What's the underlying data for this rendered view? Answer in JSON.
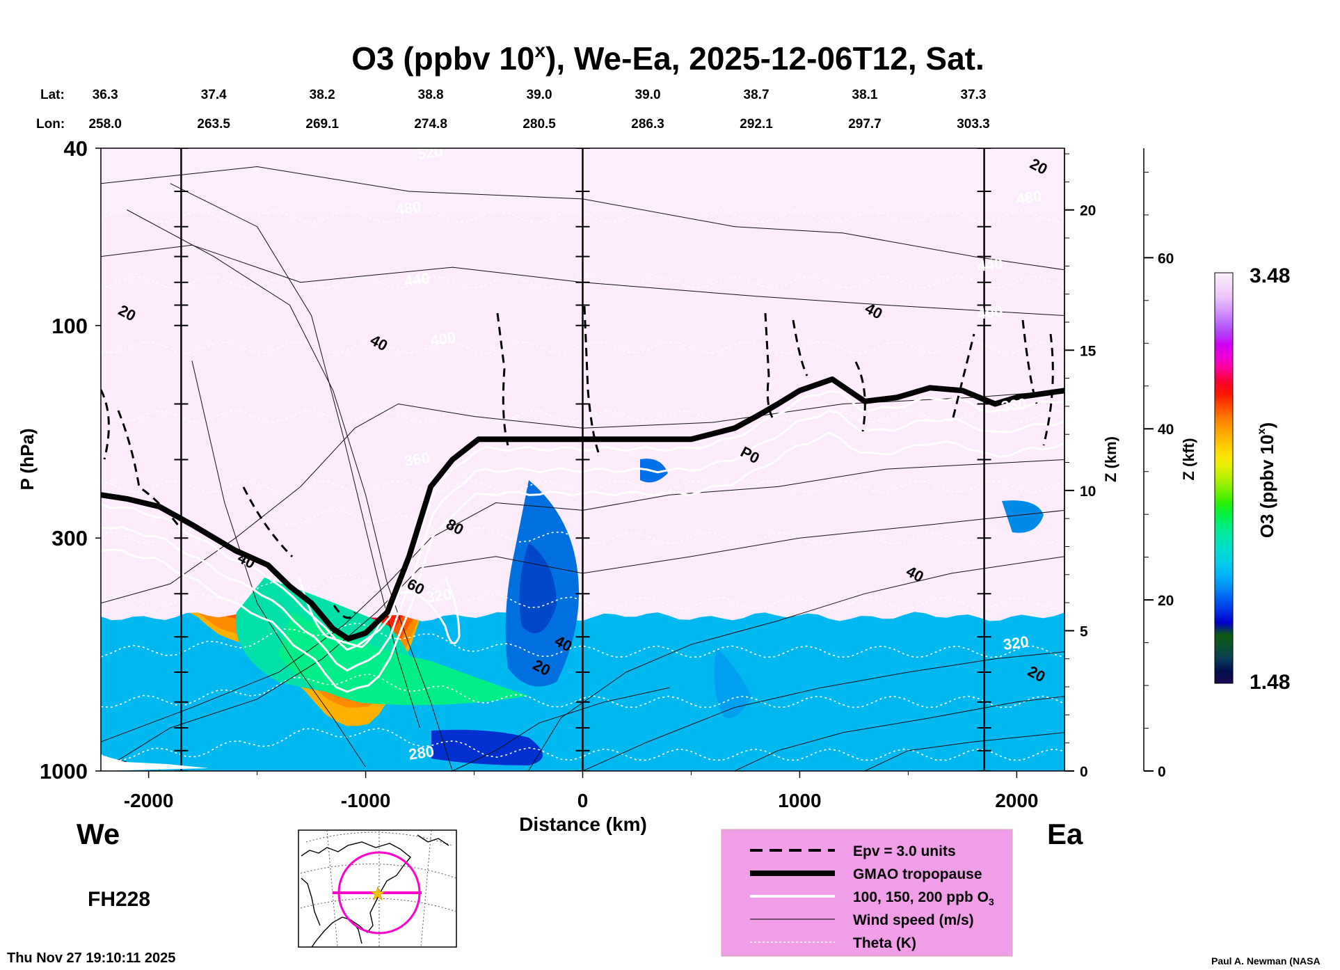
{
  "chart_data": {
    "type": "heatmap",
    "title": "O3 (ppbv 10",
    "title_superscript": "x",
    "title_rest": "), We-Ea, 2025-12-06T12, Sat.",
    "header_rows": {
      "lat_label": "Lat:",
      "lon_label": "Lon:",
      "lat": [
        "36.3",
        "37.4",
        "38.2",
        "38.8",
        "39.0",
        "39.0",
        "38.7",
        "38.1",
        "37.3"
      ],
      "lon": [
        "258.0",
        "263.5",
        "269.1",
        "274.8",
        "280.5",
        "286.3",
        "292.1",
        "297.7",
        "303.3"
      ],
      "distance_km": [
        -2200,
        -1700,
        -1200,
        -700,
        -200,
        300,
        800,
        1300,
        1800
      ]
    },
    "x_axis": {
      "label": "Distance (km)",
      "range": [
        -2220,
        2220
      ],
      "ticks": [
        -2000,
        -1000,
        0,
        1000,
        2000
      ],
      "tick_labels": [
        "-2000",
        "-1000",
        "0",
        "1000",
        "2000"
      ]
    },
    "y_axis": {
      "label": "P (hPa)",
      "scale": "log",
      "range": [
        1000,
        40
      ],
      "ticks": [
        40,
        100,
        300,
        1000
      ],
      "tick_labels": [
        "40",
        "100",
        "300",
        "1000"
      ]
    },
    "z_km_axis": {
      "label": "Z (km)",
      "ticks": [
        0,
        5,
        10,
        15,
        20
      ],
      "tick_labels": [
        "0",
        "5",
        "10",
        "15",
        "20"
      ]
    },
    "z_kft_axis": {
      "label": "Z (kft)",
      "ticks": [
        0,
        20,
        40,
        60
      ],
      "tick_labels": [
        "0",
        "20",
        "40",
        "60"
      ]
    },
    "colorbar": {
      "label": "O3 (ppbv 10",
      "label_superscript": "x",
      "label_rest": ")",
      "min": 1.48,
      "max": 3.48,
      "min_label": "1.48",
      "max_label": "3.48",
      "colors": [
        "#1a0a55",
        "#00104a",
        "#0b3a5a",
        "#0a5030",
        "#0c5a10",
        "#0000c8",
        "#0030e6",
        "#005ff0",
        "#0090f6",
        "#00b4f8",
        "#00cce8",
        "#00dcd0",
        "#00e6b0",
        "#00ee80",
        "#00f040",
        "#30f000",
        "#78f000",
        "#b4f000",
        "#e6f000",
        "#ffe000",
        "#ffc000",
        "#ffa000",
        "#ff7800",
        "#ff4800",
        "#ff1400",
        "#ff0030",
        "#ff0090",
        "#f000d8",
        "#d000f0",
        "#b040f8",
        "#c070fa",
        "#d89cfc",
        "#ecc4fc",
        "#f6dcfc",
        "#fdeefd"
      ]
    },
    "vertical_markers_km": [
      -1850,
      0,
      1850
    ],
    "contour_labels": [
      {
        "text": "20",
        "x": 2090,
        "p": 45,
        "color": "black"
      },
      {
        "text": "20",
        "x": -2110,
        "p": 96,
        "color": "black"
      },
      {
        "text": "40",
        "x": -950,
        "p": 112,
        "color": "black"
      },
      {
        "text": "40",
        "x": 1330,
        "p": 95,
        "color": "black"
      },
      {
        "text": "80",
        "x": -600,
        "p": 290,
        "color": "black"
      },
      {
        "text": "P0",
        "x": 760,
        "p": 200,
        "color": "black"
      },
      {
        "text": "40",
        "x": -1560,
        "p": 345,
        "color": "black"
      },
      {
        "text": "60",
        "x": -780,
        "p": 395,
        "color": "black"
      },
      {
        "text": "40",
        "x": 1520,
        "p": 370,
        "color": "black"
      },
      {
        "text": "40",
        "x": -100,
        "p": 530,
        "color": "black"
      },
      {
        "text": "20",
        "x": -200,
        "p": 600,
        "color": "black"
      },
      {
        "text": "20",
        "x": 2080,
        "p": 620,
        "color": "black"
      },
      {
        "text": "440",
        "x": -760,
        "p": 81,
        "color": "white"
      },
      {
        "text": "400",
        "x": -640,
        "p": 110,
        "color": "white"
      },
      {
        "text": "360",
        "x": -760,
        "p": 205,
        "color": "white"
      },
      {
        "text": "320",
        "x": -660,
        "p": 415,
        "color": "white"
      },
      {
        "text": "280",
        "x": -740,
        "p": 935,
        "color": "white"
      },
      {
        "text": "480",
        "x": -800,
        "p": 56,
        "color": "white"
      },
      {
        "text": "520",
        "x": -700,
        "p": 42,
        "color": "white"
      },
      {
        "text": "440",
        "x": 1880,
        "p": 75,
        "color": "white"
      },
      {
        "text": "400",
        "x": 1880,
        "p": 96,
        "color": "white"
      },
      {
        "text": "360",
        "x": 1990,
        "p": 155,
        "color": "white"
      },
      {
        "text": "320",
        "x": 2000,
        "p": 530,
        "color": "white"
      },
      {
        "text": "480",
        "x": 2060,
        "p": 53,
        "color": "white"
      }
    ],
    "tropopause_hpa": [
      [
        -2220,
        240
      ],
      [
        -2100,
        245
      ],
      [
        -1950,
        255
      ],
      [
        -1800,
        280
      ],
      [
        -1600,
        320
      ],
      [
        -1450,
        345
      ],
      [
        -1350,
        385
      ],
      [
        -1250,
        420
      ],
      [
        -1150,
        480
      ],
      [
        -1080,
        505
      ],
      [
        -1000,
        490
      ],
      [
        -900,
        440
      ],
      [
        -800,
        330
      ],
      [
        -700,
        230
      ],
      [
        -600,
        200
      ],
      [
        -480,
        180
      ],
      [
        0,
        180
      ],
      [
        500,
        180
      ],
      [
        700,
        170
      ],
      [
        800,
        160
      ],
      [
        900,
        150
      ],
      [
        1000,
        140
      ],
      [
        1150,
        132
      ],
      [
        1300,
        148
      ],
      [
        1450,
        145
      ],
      [
        1600,
        138
      ],
      [
        1750,
        140
      ],
      [
        1900,
        150
      ],
      [
        2000,
        145
      ],
      [
        2220,
        140
      ]
    ],
    "legend": {
      "items": [
        {
          "label": "Epv = 3.0 units",
          "style": "dashed"
        },
        {
          "label": "GMAO tropopause",
          "style": "thick"
        },
        {
          "label": "100, 150, 200 ppb O",
          "sub": "3",
          "style": "white"
        },
        {
          "label": "Wind speed (m/s)",
          "style": "thin"
        },
        {
          "label": "Theta (K)",
          "style": "dotted"
        }
      ]
    },
    "direction_west": "We",
    "direction_east": "Ea",
    "forecast_hour": "FH228",
    "timestamp": "Thu Nov 27 19:10:11 2025",
    "credit": "Paul A. Newman (NASA"
  }
}
